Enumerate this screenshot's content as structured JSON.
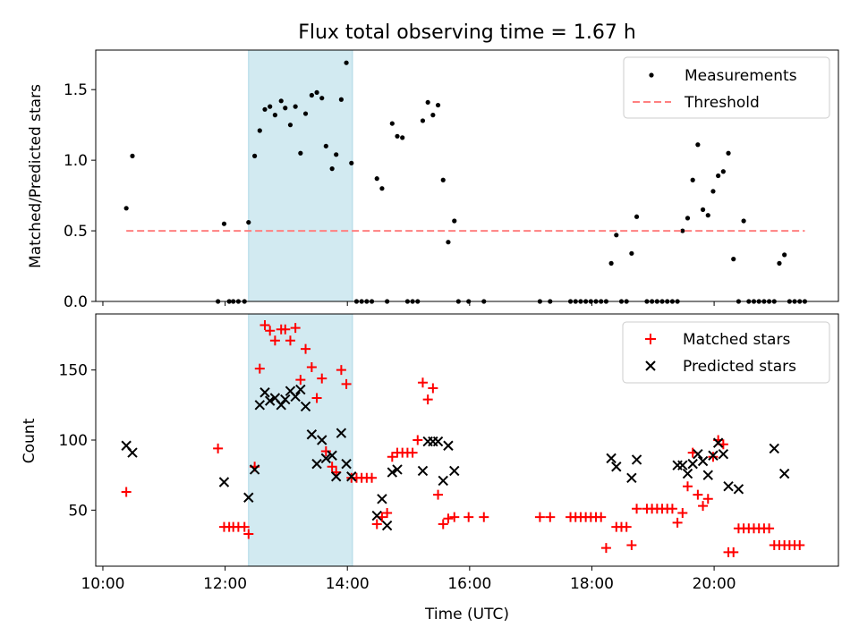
{
  "chart_data": [
    {
      "type": "scatter",
      "title": "Flux total observing time = 1.67 h",
      "xlabel": "",
      "ylabel": "Matched/Predicted stars",
      "xlim": [
        "09:53",
        "22:02"
      ],
      "ylim": [
        0,
        1.78
      ],
      "yticks": [
        0.0,
        0.5,
        1.0,
        1.5
      ],
      "ytick_labels": [
        "0.0",
        "0.5",
        "1.0",
        "1.5"
      ],
      "xticks": [
        "10:00",
        "12:00",
        "14:00",
        "16:00",
        "18:00",
        "20:00"
      ],
      "show_xtick_labels": false,
      "grid": false,
      "legend": "top-right",
      "highlight_span": [
        "12:23",
        "14:05"
      ],
      "highlight_color": "#add8e6",
      "series": [
        {
          "name": "Measurements",
          "marker": "dot",
          "color": "#000000",
          "points": [
            [
              "10:23",
              0.66
            ],
            [
              "10:29",
              1.03
            ],
            [
              "11:53",
              0.0
            ],
            [
              "11:59",
              0.55
            ],
            [
              "12:04",
              0.0
            ],
            [
              "12:08",
              0.0
            ],
            [
              "12:13",
              0.0
            ],
            [
              "12:19",
              0.0
            ],
            [
              "12:23",
              0.56
            ],
            [
              "12:29",
              1.03
            ],
            [
              "12:34",
              1.21
            ],
            [
              "12:39",
              1.36
            ],
            [
              "12:44",
              1.38
            ],
            [
              "12:49",
              1.32
            ],
            [
              "12:55",
              1.42
            ],
            [
              "12:59",
              1.37
            ],
            [
              "13:04",
              1.25
            ],
            [
              "13:09",
              1.38
            ],
            [
              "13:14",
              1.05
            ],
            [
              "13:19",
              1.33
            ],
            [
              "13:25",
              1.46
            ],
            [
              "13:30",
              1.48
            ],
            [
              "13:35",
              1.44
            ],
            [
              "13:39",
              1.1
            ],
            [
              "13:45",
              0.94
            ],
            [
              "13:49",
              1.04
            ],
            [
              "13:54",
              1.43
            ],
            [
              "13:59",
              1.69
            ],
            [
              "14:04",
              0.98
            ],
            [
              "14:09",
              0.0
            ],
            [
              "14:14",
              0.0
            ],
            [
              "14:19",
              0.0
            ],
            [
              "14:24",
              0.0
            ],
            [
              "14:29",
              0.87
            ],
            [
              "14:34",
              0.8
            ],
            [
              "14:39",
              0.0
            ],
            [
              "14:44",
              1.26
            ],
            [
              "14:49",
              1.17
            ],
            [
              "14:54",
              1.16
            ],
            [
              "14:59",
              0.0
            ],
            [
              "15:04",
              0.0
            ],
            [
              "15:09",
              0.0
            ],
            [
              "15:14",
              1.28
            ],
            [
              "15:19",
              1.41
            ],
            [
              "15:24",
              1.32
            ],
            [
              "15:29",
              1.39
            ],
            [
              "15:34",
              0.86
            ],
            [
              "15:39",
              0.42
            ],
            [
              "15:45",
              0.57
            ],
            [
              "15:49",
              0.0
            ],
            [
              "15:59",
              0.0
            ],
            [
              "16:14",
              0.0
            ],
            [
              "17:09",
              0.0
            ],
            [
              "17:19",
              0.0
            ],
            [
              "17:39",
              0.0
            ],
            [
              "17:44",
              0.0
            ],
            [
              "17:49",
              0.0
            ],
            [
              "17:54",
              0.0
            ],
            [
              "17:59",
              0.0
            ],
            [
              "18:04",
              0.0
            ],
            [
              "18:09",
              0.0
            ],
            [
              "18:14",
              0.0
            ],
            [
              "18:19",
              0.27
            ],
            [
              "18:24",
              0.47
            ],
            [
              "18:29",
              0.0
            ],
            [
              "18:34",
              0.0
            ],
            [
              "18:39",
              0.34
            ],
            [
              "18:44",
              0.6
            ],
            [
              "18:54",
              0.0
            ],
            [
              "18:59",
              0.0
            ],
            [
              "19:04",
              0.0
            ],
            [
              "19:09",
              0.0
            ],
            [
              "19:14",
              0.0
            ],
            [
              "19:19",
              0.0
            ],
            [
              "19:24",
              0.0
            ],
            [
              "19:29",
              0.5
            ],
            [
              "19:34",
              0.59
            ],
            [
              "19:39",
              0.86
            ],
            [
              "19:44",
              1.11
            ],
            [
              "19:49",
              0.65
            ],
            [
              "19:54",
              0.61
            ],
            [
              "19:59",
              0.78
            ],
            [
              "20:04",
              0.89
            ],
            [
              "20:09",
              0.92
            ],
            [
              "20:14",
              1.05
            ],
            [
              "20:19",
              0.3
            ],
            [
              "20:24",
              0.0
            ],
            [
              "20:29",
              0.57
            ],
            [
              "20:34",
              0.0
            ],
            [
              "20:39",
              0.0
            ],
            [
              "20:44",
              0.0
            ],
            [
              "20:49",
              0.0
            ],
            [
              "20:54",
              0.0
            ],
            [
              "20:59",
              0.0
            ],
            [
              "21:04",
              0.27
            ],
            [
              "21:09",
              0.33
            ],
            [
              "21:14",
              0.0
            ],
            [
              "21:19",
              0.0
            ],
            [
              "21:24",
              0.0
            ],
            [
              "21:29",
              0.0
            ]
          ]
        },
        {
          "name": "Threshold",
          "marker": "dashed-line",
          "color": "#ff8080",
          "points": [
            [
              "10:23",
              0.5
            ],
            [
              "21:29",
              0.5
            ]
          ]
        }
      ]
    },
    {
      "type": "scatter",
      "title": "",
      "xlabel": "Time (UTC)",
      "ylabel": "Count",
      "xlim": [
        "09:53",
        "22:02"
      ],
      "ylim": [
        10,
        190
      ],
      "yticks": [
        50,
        100,
        150
      ],
      "ytick_labels": [
        "50",
        "100",
        "150"
      ],
      "xticks": [
        "10:00",
        "12:00",
        "14:00",
        "16:00",
        "18:00",
        "20:00"
      ],
      "xtick_labels": [
        "10:00",
        "12:00",
        "14:00",
        "16:00",
        "18:00",
        "20:00"
      ],
      "grid": false,
      "legend": "top-right",
      "highlight_span": [
        "12:23",
        "14:05"
      ],
      "highlight_color": "#add8e6",
      "series": [
        {
          "name": "Matched stars",
          "marker": "plus",
          "color": "#ff0000",
          "points": [
            [
              "10:23",
              63
            ],
            [
              "11:53",
              94
            ],
            [
              "11:59",
              38
            ],
            [
              "12:04",
              38
            ],
            [
              "12:08",
              38
            ],
            [
              "12:13",
              38
            ],
            [
              "12:19",
              38
            ],
            [
              "12:23",
              33
            ],
            [
              "12:29",
              81
            ],
            [
              "12:34",
              151
            ],
            [
              "12:39",
              182
            ],
            [
              "12:44",
              178
            ],
            [
              "12:49",
              171
            ],
            [
              "12:55",
              179
            ],
            [
              "12:59",
              179
            ],
            [
              "13:04",
              171
            ],
            [
              "13:09",
              180
            ],
            [
              "13:14",
              143
            ],
            [
              "13:19",
              165
            ],
            [
              "13:25",
              152
            ],
            [
              "13:30",
              130
            ],
            [
              "13:35",
              144
            ],
            [
              "13:39",
              92
            ],
            [
              "13:45",
              81
            ],
            [
              "13:49",
              77
            ],
            [
              "13:54",
              150
            ],
            [
              "13:59",
              140
            ],
            [
              "14:04",
              73
            ],
            [
              "14:09",
              73
            ],
            [
              "14:14",
              73
            ],
            [
              "14:19",
              73
            ],
            [
              "14:24",
              73
            ],
            [
              "14:29",
              40
            ],
            [
              "14:34",
              45
            ],
            [
              "14:39",
              48
            ],
            [
              "14:44",
              88
            ],
            [
              "14:49",
              91
            ],
            [
              "14:54",
              91
            ],
            [
              "14:59",
              91
            ],
            [
              "15:04",
              91
            ],
            [
              "15:09",
              100
            ],
            [
              "15:14",
              141
            ],
            [
              "15:19",
              129
            ],
            [
              "15:24",
              137
            ],
            [
              "15:29",
              61
            ],
            [
              "15:34",
              40
            ],
            [
              "15:39",
              44
            ],
            [
              "15:45",
              45
            ],
            [
              "15:59",
              45
            ],
            [
              "16:14",
              45
            ],
            [
              "17:09",
              45
            ],
            [
              "17:19",
              45
            ],
            [
              "17:39",
              45
            ],
            [
              "17:44",
              45
            ],
            [
              "17:49",
              45
            ],
            [
              "17:54",
              45
            ],
            [
              "17:59",
              45
            ],
            [
              "18:04",
              45
            ],
            [
              "18:09",
              45
            ],
            [
              "18:14",
              23
            ],
            [
              "18:24",
              38
            ],
            [
              "18:29",
              38
            ],
            [
              "18:34",
              38
            ],
            [
              "18:39",
              25
            ],
            [
              "18:44",
              51
            ],
            [
              "18:54",
              51
            ],
            [
              "18:59",
              51
            ],
            [
              "19:04",
              51
            ],
            [
              "19:09",
              51
            ],
            [
              "19:14",
              51
            ],
            [
              "19:19",
              51
            ],
            [
              "19:24",
              41
            ],
            [
              "19:29",
              48
            ],
            [
              "19:34",
              67
            ],
            [
              "19:39",
              91
            ],
            [
              "19:44",
              61
            ],
            [
              "19:49",
              53
            ],
            [
              "19:54",
              58
            ],
            [
              "19:59",
              88
            ],
            [
              "20:04",
              100
            ],
            [
              "20:09",
              97
            ],
            [
              "20:14",
              20
            ],
            [
              "20:19",
              20
            ],
            [
              "20:24",
              37
            ],
            [
              "20:29",
              37
            ],
            [
              "20:34",
              37
            ],
            [
              "20:39",
              37
            ],
            [
              "20:44",
              37
            ],
            [
              "20:49",
              37
            ],
            [
              "20:54",
              37
            ],
            [
              "20:59",
              25
            ],
            [
              "21:04",
              25
            ],
            [
              "21:09",
              25
            ],
            [
              "21:14",
              25
            ],
            [
              "21:19",
              25
            ],
            [
              "21:24",
              25
            ]
          ]
        },
        {
          "name": "Predicted stars",
          "marker": "x",
          "color": "#000000",
          "points": [
            [
              "10:23",
              96
            ],
            [
              "10:29",
              91
            ],
            [
              "11:59",
              70
            ],
            [
              "12:23",
              59
            ],
            [
              "12:29",
              79
            ],
            [
              "12:34",
              125
            ],
            [
              "12:39",
              134
            ],
            [
              "12:44",
              128
            ],
            [
              "12:49",
              130
            ],
            [
              "12:55",
              125
            ],
            [
              "12:59",
              129
            ],
            [
              "13:04",
              135
            ],
            [
              "13:09",
              131
            ],
            [
              "13:14",
              136
            ],
            [
              "13:19",
              124
            ],
            [
              "13:25",
              104
            ],
            [
              "13:30",
              83
            ],
            [
              "13:35",
              100
            ],
            [
              "13:39",
              87
            ],
            [
              "13:45",
              89
            ],
            [
              "13:49",
              74
            ],
            [
              "13:54",
              105
            ],
            [
              "13:59",
              83
            ],
            [
              "14:04",
              74
            ],
            [
              "14:29",
              46
            ],
            [
              "14:34",
              58
            ],
            [
              "14:39",
              39
            ],
            [
              "14:44",
              77
            ],
            [
              "14:49",
              79
            ],
            [
              "15:14",
              78
            ],
            [
              "15:19",
              99
            ],
            [
              "15:24",
              99
            ],
            [
              "15:29",
              99
            ],
            [
              "15:34",
              71
            ],
            [
              "15:39",
              96
            ],
            [
              "15:45",
              78
            ],
            [
              "18:19",
              87
            ],
            [
              "18:24",
              81
            ],
            [
              "18:39",
              73
            ],
            [
              "18:44",
              86
            ],
            [
              "19:24",
              82
            ],
            [
              "19:29",
              82
            ],
            [
              "19:34",
              76
            ],
            [
              "19:39",
              83
            ],
            [
              "19:44",
              90
            ],
            [
              "19:49",
              85
            ],
            [
              "19:54",
              75
            ],
            [
              "19:59",
              89
            ],
            [
              "20:04",
              98
            ],
            [
              "20:09",
              90
            ],
            [
              "20:14",
              67
            ],
            [
              "20:24",
              65
            ],
            [
              "20:59",
              94
            ],
            [
              "21:09",
              76
            ]
          ]
        }
      ]
    }
  ]
}
